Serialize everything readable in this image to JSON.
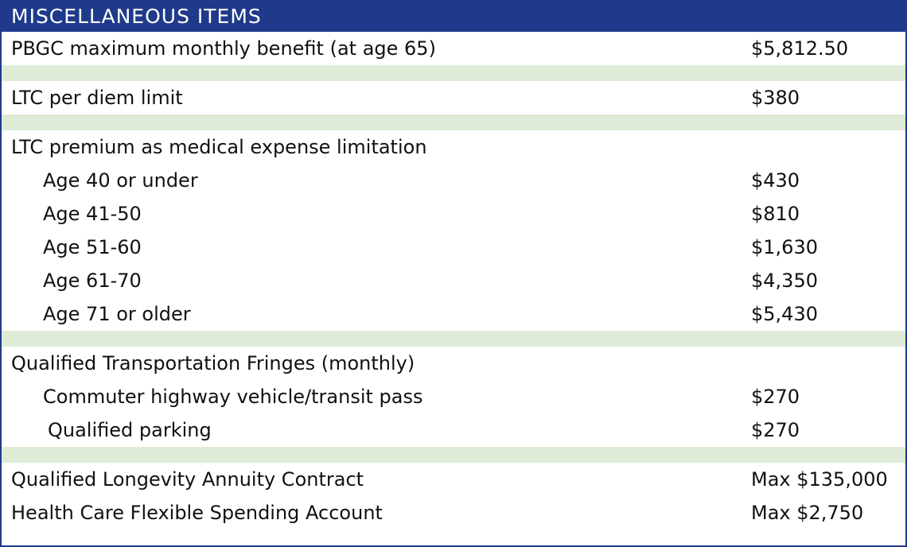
{
  "header": {
    "title": "MISCELLANEOUS ITEMS"
  },
  "rows": {
    "pbgc": {
      "label": "PBGC maximum monthly benefit (at age 65)",
      "value": "$5,812.50"
    },
    "ltc_per_diem": {
      "label": "LTC per diem limit",
      "value": "$380"
    },
    "ltc_premium": {
      "label": "LTC premium as medical expense limitation"
    },
    "age_40": {
      "label": "Age 40 or under",
      "value": "$430"
    },
    "age_41_50": {
      "label": "Age 41-50",
      "value": "$810"
    },
    "age_51_60": {
      "label": "Age 51-60",
      "value": "$1,630"
    },
    "age_61_70": {
      "label": "Age 61-70",
      "value": "$4,350"
    },
    "age_71": {
      "label": "Age 71 or older",
      "value": "$5,430"
    },
    "qtf": {
      "label": "Qualified Transportation Fringes (monthly)"
    },
    "commuter": {
      "label": "Commuter highway vehicle/transit pass",
      "value": "$270"
    },
    "parking": {
      "label": "Qualified parking",
      "value": "$270"
    },
    "qlac": {
      "label": "Qualified Longevity Annuity Contract",
      "value": "Max $135,000"
    },
    "hcfsa": {
      "label": "Health Care Flexible Spending Account",
      "value": "Max $2,750"
    }
  },
  "colors": {
    "header_bg": "#1f3a8a",
    "spacer_bg": "#deebd6"
  }
}
